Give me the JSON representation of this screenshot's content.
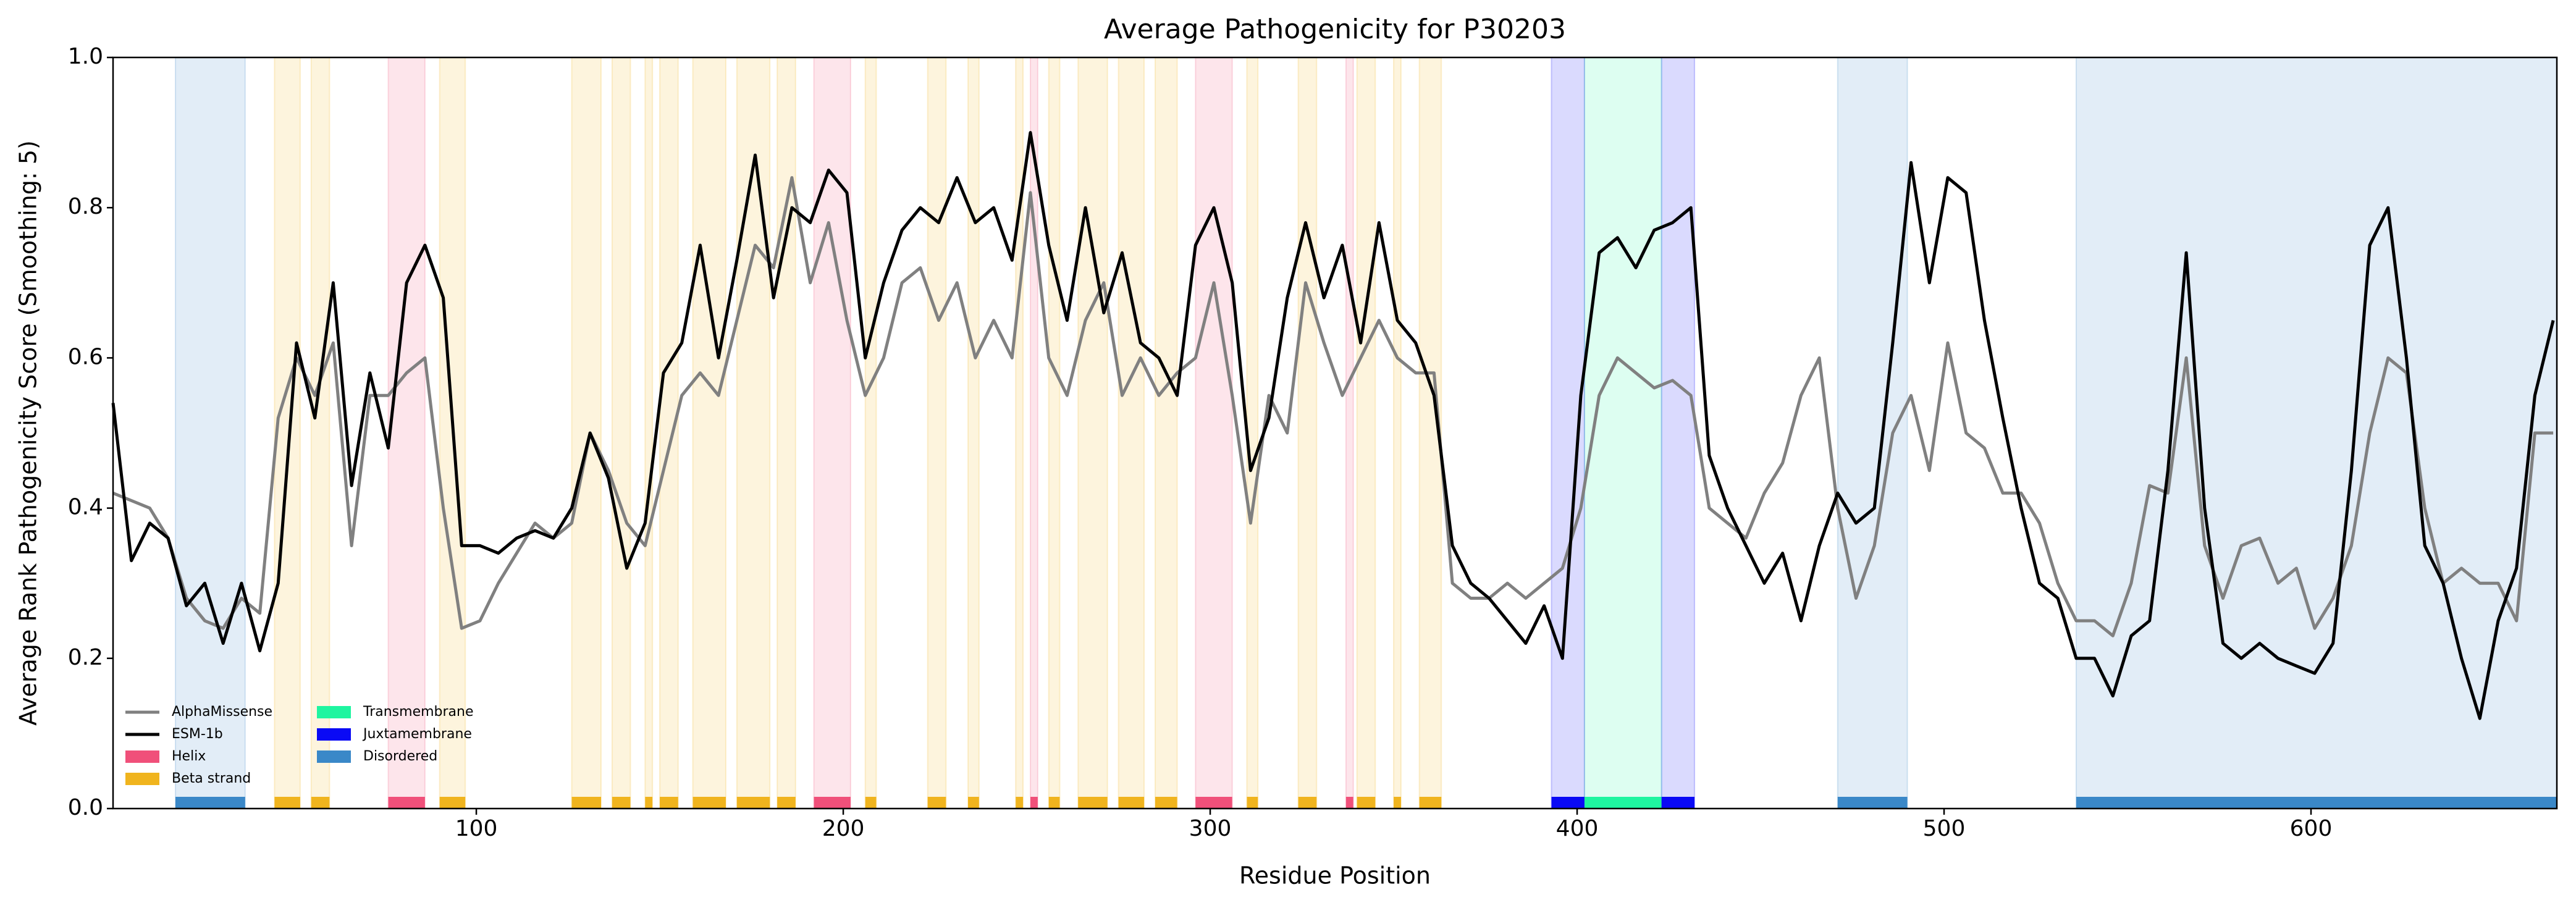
{
  "chart_data": {
    "type": "line",
    "title": "Average Pathogenicity for P30203",
    "x_label": "Residue Position",
    "y_label": "Average Rank Pathogenicity Score (Smoothing: 5)",
    "xlim": [
      1,
      667
    ],
    "xticks": [
      100,
      200,
      300,
      400,
      500,
      600
    ],
    "ylim": [
      0,
      1
    ],
    "yticks": [
      {
        "value": 0,
        "label": "0.0"
      },
      {
        "value": 0.2,
        "label": "0.2"
      },
      {
        "value": 0.4,
        "label": "0.4"
      },
      {
        "value": 0.6,
        "label": "0.6"
      },
      {
        "value": 0.8,
        "label": "0.8"
      },
      {
        "value": 1,
        "label": "1.0"
      }
    ],
    "legend": "lower left",
    "x": [
      1,
      6,
      11,
      16,
      21,
      26,
      31,
      36,
      41,
      46,
      51,
      56,
      61,
      66,
      71,
      76,
      81,
      86,
      91,
      96,
      101,
      106,
      111,
      116,
      121,
      126,
      131,
      136,
      141,
      146,
      151,
      156,
      161,
      166,
      171,
      176,
      181,
      186,
      191,
      196,
      201,
      206,
      211,
      216,
      221,
      226,
      231,
      236,
      241,
      246,
      251,
      256,
      261,
      266,
      271,
      276,
      281,
      286,
      291,
      296,
      301,
      306,
      311,
      316,
      321,
      326,
      331,
      336,
      341,
      346,
      351,
      356,
      361,
      366,
      371,
      376,
      381,
      386,
      391,
      396,
      401,
      406,
      411,
      416,
      421,
      426,
      431,
      436,
      441,
      446,
      451,
      456,
      461,
      466,
      471,
      476,
      481,
      486,
      491,
      496,
      501,
      506,
      511,
      516,
      521,
      526,
      531,
      536,
      541,
      546,
      551,
      556,
      561,
      566,
      571,
      576,
      581,
      586,
      591,
      596,
      601,
      606,
      611,
      616,
      621,
      626,
      631,
      636,
      641,
      646,
      651,
      656,
      661,
      666
    ],
    "series": [
      {
        "name": "AlphaMissense",
        "color": "#808080",
        "values": [
          0.42,
          0.41,
          0.4,
          0.36,
          0.28,
          0.25,
          0.24,
          0.28,
          0.26,
          0.52,
          0.6,
          0.55,
          0.62,
          0.35,
          0.55,
          0.55,
          0.58,
          0.6,
          0.4,
          0.24,
          0.25,
          0.3,
          0.34,
          0.38,
          0.36,
          0.38,
          0.5,
          0.45,
          0.38,
          0.35,
          0.45,
          0.55,
          0.58,
          0.55,
          0.65,
          0.75,
          0.72,
          0.84,
          0.7,
          0.78,
          0.65,
          0.55,
          0.6,
          0.7,
          0.72,
          0.65,
          0.7,
          0.6,
          0.65,
          0.6,
          0.82,
          0.6,
          0.55,
          0.65,
          0.7,
          0.55,
          0.6,
          0.55,
          0.58,
          0.6,
          0.7,
          0.55,
          0.38,
          0.55,
          0.5,
          0.7,
          0.62,
          0.55,
          0.6,
          0.65,
          0.6,
          0.58,
          0.58,
          0.3,
          0.28,
          0.28,
          0.3,
          0.28,
          0.3,
          0.32,
          0.4,
          0.55,
          0.6,
          0.58,
          0.56,
          0.57,
          0.55,
          0.4,
          0.38,
          0.36,
          0.42,
          0.46,
          0.55,
          0.6,
          0.4,
          0.28,
          0.35,
          0.5,
          0.55,
          0.45,
          0.62,
          0.5,
          0.48,
          0.42,
          0.42,
          0.38,
          0.3,
          0.25,
          0.25,
          0.23,
          0.3,
          0.43,
          0.42,
          0.6,
          0.35,
          0.28,
          0.35,
          0.36,
          0.3,
          0.32,
          0.24,
          0.28,
          0.35,
          0.5,
          0.6,
          0.58,
          0.4,
          0.3,
          0.32,
          0.3,
          0.3,
          0.25,
          0.5,
          0.5
        ]
      },
      {
        "name": "ESM-1b",
        "color": "#000000",
        "values": [
          0.54,
          0.33,
          0.38,
          0.36,
          0.27,
          0.3,
          0.22,
          0.3,
          0.21,
          0.3,
          0.62,
          0.52,
          0.7,
          0.43,
          0.58,
          0.48,
          0.7,
          0.75,
          0.68,
          0.35,
          0.35,
          0.34,
          0.36,
          0.37,
          0.36,
          0.4,
          0.5,
          0.44,
          0.32,
          0.38,
          0.58,
          0.62,
          0.75,
          0.6,
          0.73,
          0.87,
          0.68,
          0.8,
          0.78,
          0.85,
          0.82,
          0.6,
          0.7,
          0.77,
          0.8,
          0.78,
          0.84,
          0.78,
          0.8,
          0.73,
          0.9,
          0.75,
          0.65,
          0.8,
          0.66,
          0.74,
          0.62,
          0.6,
          0.55,
          0.75,
          0.8,
          0.7,
          0.45,
          0.52,
          0.68,
          0.78,
          0.68,
          0.75,
          0.62,
          0.78,
          0.65,
          0.62,
          0.55,
          0.35,
          0.3,
          0.28,
          0.25,
          0.22,
          0.27,
          0.2,
          0.55,
          0.74,
          0.76,
          0.72,
          0.77,
          0.78,
          0.8,
          0.47,
          0.4,
          0.35,
          0.3,
          0.34,
          0.25,
          0.35,
          0.42,
          0.38,
          0.4,
          0.62,
          0.86,
          0.7,
          0.84,
          0.82,
          0.65,
          0.52,
          0.4,
          0.3,
          0.28,
          0.2,
          0.2,
          0.15,
          0.23,
          0.25,
          0.45,
          0.74,
          0.4,
          0.22,
          0.2,
          0.22,
          0.2,
          0.19,
          0.18,
          0.22,
          0.45,
          0.75,
          0.8,
          0.6,
          0.35,
          0.3,
          0.2,
          0.12,
          0.25,
          0.32,
          0.55,
          0.65
        ]
      }
    ],
    "features": [
      {
        "name": "Helix",
        "color": "#f0507a",
        "spans": [
          [
            76,
            86
          ],
          [
            192,
            202
          ],
          [
            251,
            253
          ],
          [
            296,
            306
          ],
          [
            337,
            339
          ]
        ]
      },
      {
        "name": "Beta strand",
        "color": "#f0b41e",
        "spans": [
          [
            45,
            52
          ],
          [
            55,
            60
          ],
          [
            90,
            97
          ],
          [
            126,
            134
          ],
          [
            137,
            142
          ],
          [
            146,
            148
          ],
          [
            150,
            155
          ],
          [
            159,
            168
          ],
          [
            171,
            180
          ],
          [
            182,
            187
          ],
          [
            206,
            209
          ],
          [
            223,
            228
          ],
          [
            234,
            237
          ],
          [
            247,
            249
          ],
          [
            256,
            259
          ],
          [
            264,
            272
          ],
          [
            275,
            282
          ],
          [
            285,
            291
          ],
          [
            310,
            313
          ],
          [
            324,
            329
          ],
          [
            340,
            345
          ],
          [
            350,
            352
          ],
          [
            357,
            363
          ]
        ]
      },
      {
        "name": "Transmembrane",
        "color": "#1ef5a0",
        "spans": [
          [
            402,
            423
          ]
        ]
      },
      {
        "name": "Juxtamembrane",
        "color": "#0a0af5",
        "spans": [
          [
            393,
            402
          ],
          [
            423,
            432
          ]
        ]
      },
      {
        "name": "Disordered",
        "color": "#3a88c8",
        "spans": [
          [
            18,
            37
          ],
          [
            471,
            490
          ],
          [
            536,
            667
          ]
        ]
      }
    ]
  }
}
